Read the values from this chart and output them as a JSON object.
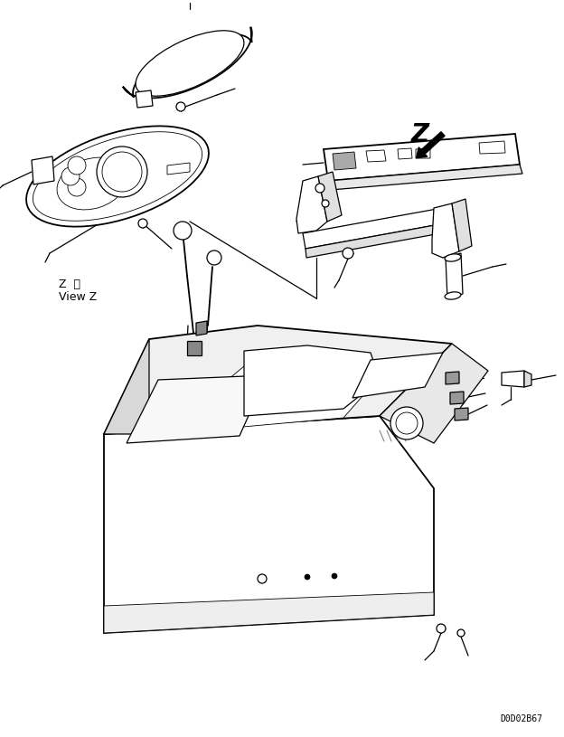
{
  "background_color": "#ffffff",
  "line_color": "#000000",
  "text_color": "#000000",
  "part_number_text": "D0D02B67",
  "view_label_line1": "Z  觳",
  "view_label_line2": "View Z",
  "z_arrow_label": "Z",
  "fig_width": 6.24,
  "fig_height": 8.15,
  "dpi": 100
}
